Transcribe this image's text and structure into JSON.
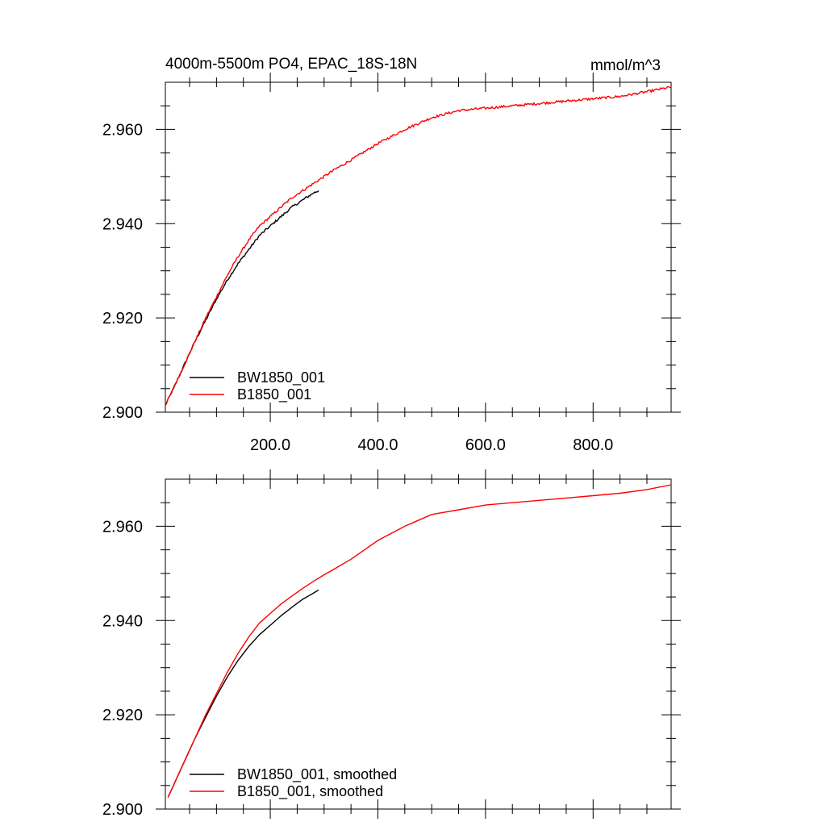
{
  "chart_data": [
    {
      "type": "line",
      "title": "4000m-5500m PO4, EPAC_18S-18N",
      "units": "mmol/m^3",
      "xlabel": "",
      "ylabel": "",
      "xlim": [
        5,
        945
      ],
      "ylim": [
        2.9,
        2.97
      ],
      "xticks": [
        200,
        400,
        600,
        800
      ],
      "xtick_labels": [
        "200.0",
        "400.0",
        "600.0",
        "800.0"
      ],
      "yticks": [
        2.9,
        2.92,
        2.94,
        2.96
      ],
      "ytick_labels": [
        "2.900",
        "2.920",
        "2.940",
        "2.960"
      ],
      "grid": false,
      "legend_position": "bottom-left",
      "noisy": true,
      "series": [
        {
          "name": "BW1850_001",
          "color": "#000000",
          "x": [
            5,
            20,
            40,
            60,
            80,
            100,
            120,
            140,
            160,
            180,
            200,
            220,
            240,
            260,
            280,
            290
          ],
          "y": [
            2.9015,
            2.905,
            2.91,
            2.915,
            2.9195,
            2.924,
            2.928,
            2.9315,
            2.9345,
            2.9375,
            2.9395,
            2.9415,
            2.9435,
            2.945,
            2.9465,
            2.947
          ]
        },
        {
          "name": "B1850_001",
          "color": "#ff0000",
          "x": [
            5,
            20,
            40,
            60,
            80,
            100,
            120,
            140,
            160,
            180,
            200,
            220,
            240,
            260,
            280,
            300,
            320,
            350,
            400,
            450,
            500,
            550,
            600,
            650,
            700,
            750,
            800,
            850,
            900,
            945
          ],
          "y": [
            2.9015,
            2.905,
            2.91,
            2.915,
            2.92,
            2.9245,
            2.929,
            2.933,
            2.9365,
            2.9395,
            2.9415,
            2.9435,
            2.9455,
            2.947,
            2.9485,
            2.95,
            2.9515,
            2.9535,
            2.957,
            2.96,
            2.9625,
            2.964,
            2.9645,
            2.965,
            2.9655,
            2.966,
            2.9665,
            2.967,
            2.968,
            2.969
          ]
        }
      ]
    },
    {
      "type": "line",
      "title": "",
      "xlabel": "",
      "ylabel": "",
      "xlim": [
        5,
        945
      ],
      "ylim": [
        2.9,
        2.97
      ],
      "xticks": [
        200,
        400,
        600,
        800
      ],
      "yticks": [
        2.9,
        2.92,
        2.94,
        2.96
      ],
      "ytick_labels": [
        "2.900",
        "2.920",
        "2.940",
        "2.960"
      ],
      "grid": false,
      "legend_position": "bottom-left",
      "noisy": false,
      "series": [
        {
          "name": "BW1850_001, smoothed",
          "color": "#000000",
          "x": [
            10,
            20,
            40,
            60,
            80,
            100,
            120,
            140,
            160,
            180,
            200,
            220,
            240,
            260,
            280,
            290
          ],
          "y": [
            2.9025,
            2.905,
            2.91,
            2.915,
            2.9195,
            2.924,
            2.928,
            2.9315,
            2.9345,
            2.937,
            2.939,
            2.941,
            2.9428,
            2.9445,
            2.9458,
            2.9465
          ]
        },
        {
          "name": "B1850_001, smoothed",
          "color": "#ff0000",
          "x": [
            10,
            20,
            40,
            60,
            80,
            100,
            120,
            140,
            160,
            180,
            200,
            220,
            240,
            260,
            280,
            300,
            320,
            350,
            400,
            450,
            500,
            550,
            600,
            650,
            700,
            750,
            800,
            850,
            900,
            945
          ],
          "y": [
            2.9025,
            2.905,
            2.91,
            2.915,
            2.92,
            2.9245,
            2.929,
            2.933,
            2.9365,
            2.9395,
            2.9415,
            2.9435,
            2.9452,
            2.9468,
            2.9483,
            2.9497,
            2.951,
            2.953,
            2.957,
            2.96,
            2.9625,
            2.9635,
            2.9645,
            2.965,
            2.9655,
            2.966,
            2.9665,
            2.967,
            2.9678,
            2.9688
          ]
        }
      ]
    }
  ]
}
